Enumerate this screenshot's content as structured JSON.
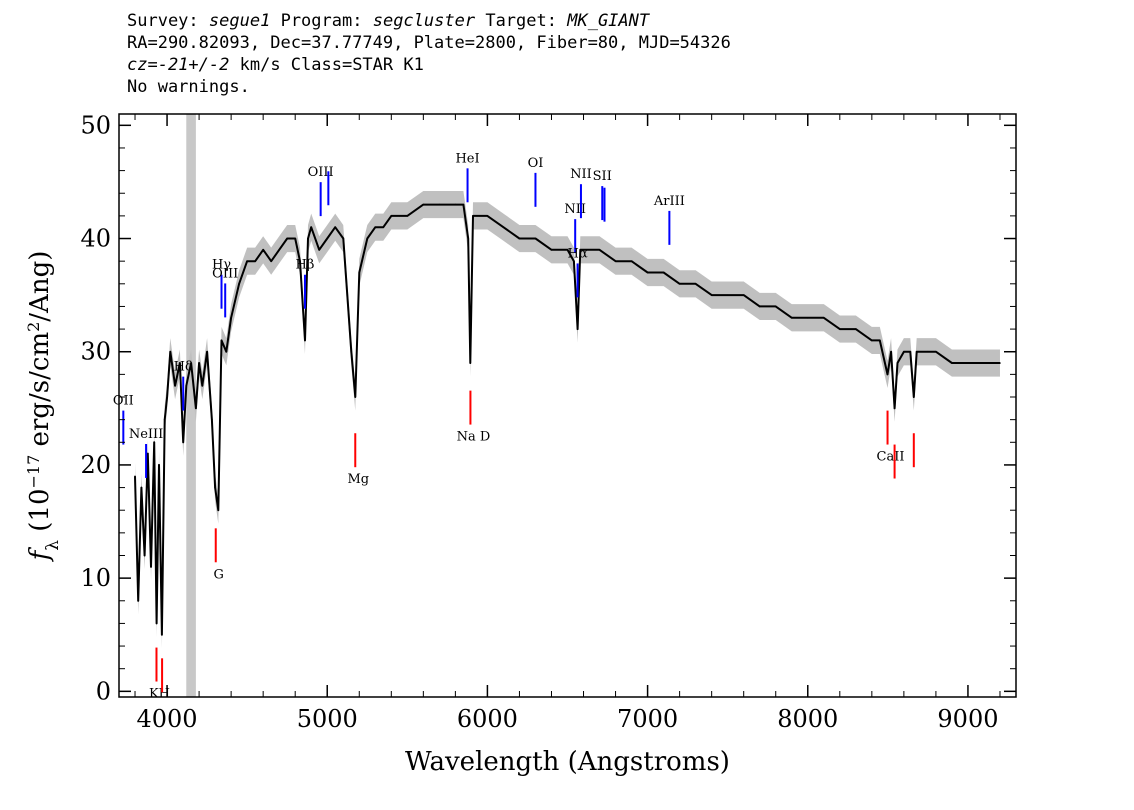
{
  "header": {
    "survey_label": "Survey:",
    "survey": "segue1",
    "program_label": "Program:",
    "program": "segcluster",
    "target_label": "Target:",
    "target": "MK_GIANT",
    "line2": "RA=290.82093, Dec=37.77749, Plate=2800, Fiber=80, MJD=54326",
    "cz_label": "cz=",
    "cz_value": "-21+/-2",
    "cz_rest": " km/s Class=STAR K1",
    "warnings": "No warnings."
  },
  "chart_data": {
    "type": "line",
    "title": "",
    "xlabel": "Wavelength (Angstroms)",
    "ylabel": "f_λ (10^-17 erg/s/cm^2/Ang)",
    "ylabel_parts": {
      "f": "f",
      "lambda": "λ",
      "open": " (10",
      "exp1": "−17",
      "mid": " erg/s/cm",
      "exp2": "2",
      "close": "/Ang)"
    },
    "xlim": [
      3700,
      9300
    ],
    "ylim": [
      -0.5,
      51
    ],
    "xticks": [
      4000,
      5000,
      6000,
      7000,
      8000,
      9000
    ],
    "yticks": [
      0,
      10,
      20,
      30,
      40,
      50
    ],
    "masked_band": [
      4120,
      4180
    ],
    "colors": {
      "flux": "#000000",
      "error": "#c0c0c0",
      "emission": "#0000ff",
      "absorption": "#ff0000",
      "mask": "#c8c8c8"
    },
    "series": [
      {
        "x": [
          3800,
          3820,
          3840,
          3860,
          3880,
          3900,
          3920,
          3935,
          3950,
          3968,
          3985,
          4000,
          4020,
          4050,
          4080,
          4101,
          4120,
          4150,
          4180,
          4200,
          4220,
          4250,
          4280,
          4300,
          4320,
          4340,
          4370,
          4400,
          4450,
          4500,
          4550,
          4600,
          4650,
          4700,
          4750,
          4800,
          4830,
          4861,
          4880,
          4900,
          4950,
          5000,
          5050,
          5100,
          5150,
          5175,
          5200,
          5250,
          5300,
          5350,
          5400,
          5450,
          5500,
          5600,
          5700,
          5800,
          5850,
          5880,
          5893,
          5910,
          5950,
          6000,
          6100,
          6200,
          6300,
          6400,
          6500,
          6540,
          6563,
          6580,
          6600,
          6700,
          6800,
          6900,
          7000,
          7100,
          7200,
          7300,
          7400,
          7500,
          7600,
          7700,
          7800,
          7900,
          8000,
          8100,
          8200,
          8300,
          8400,
          8450,
          8498,
          8520,
          8542,
          8560,
          8600,
          8640,
          8662,
          8680,
          8750,
          8800,
          8900,
          9000,
          9100,
          9200
        ],
        "values": [
          19,
          8,
          18,
          12,
          21,
          11,
          22,
          6,
          20,
          5,
          24,
          26,
          30,
          27,
          29,
          22,
          27,
          29,
          25,
          29,
          27,
          30,
          24,
          18,
          16,
          31,
          30,
          33,
          36,
          38,
          38,
          39,
          38,
          39,
          40,
          40,
          38,
          31,
          40,
          41,
          39,
          40,
          41,
          40,
          30,
          26,
          37,
          40,
          41,
          41,
          42,
          42,
          42,
          43,
          43,
          43,
          43,
          40,
          29,
          42,
          42,
          42,
          41,
          40,
          40,
          39,
          39,
          38,
          32,
          39,
          39,
          39,
          38,
          38,
          37,
          37,
          36,
          36,
          35,
          35,
          35,
          34,
          34,
          33,
          33,
          33,
          32,
          32,
          31,
          31,
          28,
          30,
          25,
          29,
          30,
          30,
          26,
          30,
          30,
          30,
          29,
          29,
          29,
          29
        ]
      }
    ],
    "emission_lines": [
      {
        "label": "OII",
        "x": 3727
      },
      {
        "label": "NeIII",
        "x": 3869
      },
      {
        "label": "Hδ",
        "x": 4101
      },
      {
        "label": "Hγ",
        "x": 4340
      },
      {
        "label": "OIII",
        "x": 4363
      },
      {
        "label": "Hβ",
        "x": 4861
      },
      {
        "label": "OIII",
        "x": 4959
      },
      {
        "label": "",
        "x": 5007
      },
      {
        "label": "HeI",
        "x": 5876
      },
      {
        "label": "OI",
        "x": 6300
      },
      {
        "label": "NII",
        "x": 6548
      },
      {
        "label": "Hα",
        "x": 6563
      },
      {
        "label": "NII",
        "x": 6584
      },
      {
        "label": "SII",
        "x": 6717
      },
      {
        "label": "",
        "x": 6731
      },
      {
        "label": "ArIII",
        "x": 7136
      }
    ],
    "absorption_lines": [
      {
        "label": "KH",
        "x": 3934
      },
      {
        "label": "",
        "x": 3969
      },
      {
        "label": "G",
        "x": 4304
      },
      {
        "label": "Mg",
        "x": 5175
      },
      {
        "label": "Na D",
        "x": 5894
      },
      {
        "label": "CaII",
        "x": 8498
      },
      {
        "label": "",
        "x": 8542
      },
      {
        "label": "",
        "x": 8662
      }
    ]
  }
}
